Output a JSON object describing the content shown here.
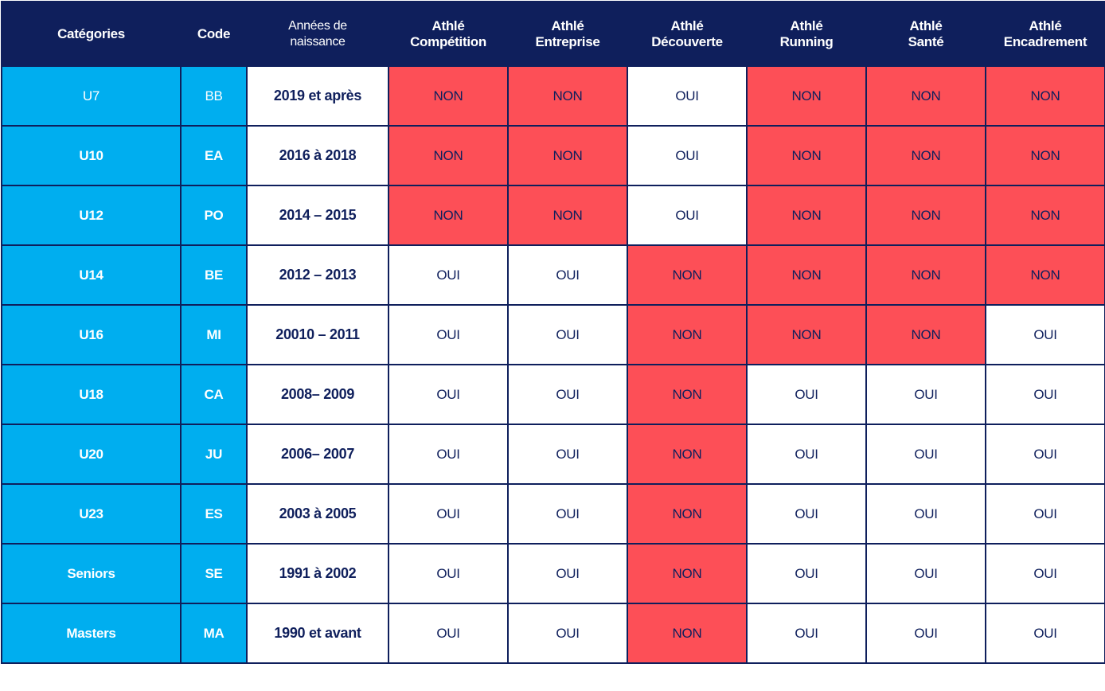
{
  "colors": {
    "header_bg": "#0f1f5c",
    "category_bg": "#00aeef",
    "non_bg": "#fd4f57",
    "oui_bg": "#ffffff",
    "text_dark": "#0f1f5c"
  },
  "headers": {
    "categories": "Catégories",
    "code": "Code",
    "years_line1": "Années de",
    "years_line2": "naissance",
    "options": [
      {
        "line1": "Athlé",
        "line2": "Compétition"
      },
      {
        "line1": "Athlé",
        "line2": "Entreprise"
      },
      {
        "line1": "Athlé",
        "line2": "Découverte"
      },
      {
        "line1": "Athlé",
        "line2": "Running"
      },
      {
        "line1": "Athlé",
        "line2": "Santé"
      },
      {
        "line1": "Athlé",
        "line2": "Encadrement"
      }
    ]
  },
  "rows": [
    {
      "category": "U7",
      "code": "BB",
      "years": "2019 et après",
      "values": [
        "NON",
        "NON",
        "OUI",
        "NON",
        "NON",
        "NON"
      ]
    },
    {
      "category": "U10",
      "code": "EA",
      "years": "2016 à 2018",
      "values": [
        "NON",
        "NON",
        "OUI",
        "NON",
        "NON",
        "NON"
      ]
    },
    {
      "category": "U12",
      "code": "PO",
      "years": "2014 – 2015",
      "values": [
        "NON",
        "NON",
        "OUI",
        "NON",
        "NON",
        "NON"
      ]
    },
    {
      "category": "U14",
      "code": "BE",
      "years": "2012 – 2013",
      "values": [
        "OUI",
        "OUI",
        "NON",
        "NON",
        "NON",
        "NON"
      ]
    },
    {
      "category": "U16",
      "code": "MI",
      "years": "20010 – 2011",
      "values": [
        "OUI",
        "OUI",
        "NON",
        "NON",
        "NON",
        "OUI"
      ]
    },
    {
      "category": "U18",
      "code": "CA",
      "years": "2008– 2009",
      "values": [
        "OUI",
        "OUI",
        "NON",
        "OUI",
        "OUI",
        "OUI"
      ]
    },
    {
      "category": "U20",
      "code": "JU",
      "years": "2006– 2007",
      "values": [
        "OUI",
        "OUI",
        "NON",
        "OUI",
        "OUI",
        "OUI"
      ]
    },
    {
      "category": "U23",
      "code": "ES",
      "years": "2003 à 2005",
      "values": [
        "OUI",
        "OUI",
        "NON",
        "OUI",
        "OUI",
        "OUI"
      ]
    },
    {
      "category": "Seniors",
      "code": "SE",
      "years": "1991 à 2002",
      "values": [
        "OUI",
        "OUI",
        "NON",
        "OUI",
        "OUI",
        "OUI"
      ]
    },
    {
      "category": "Masters",
      "code": "MA",
      "years": "1990 et avant",
      "values": [
        "OUI",
        "OUI",
        "NON",
        "OUI",
        "OUI",
        "OUI"
      ]
    }
  ]
}
